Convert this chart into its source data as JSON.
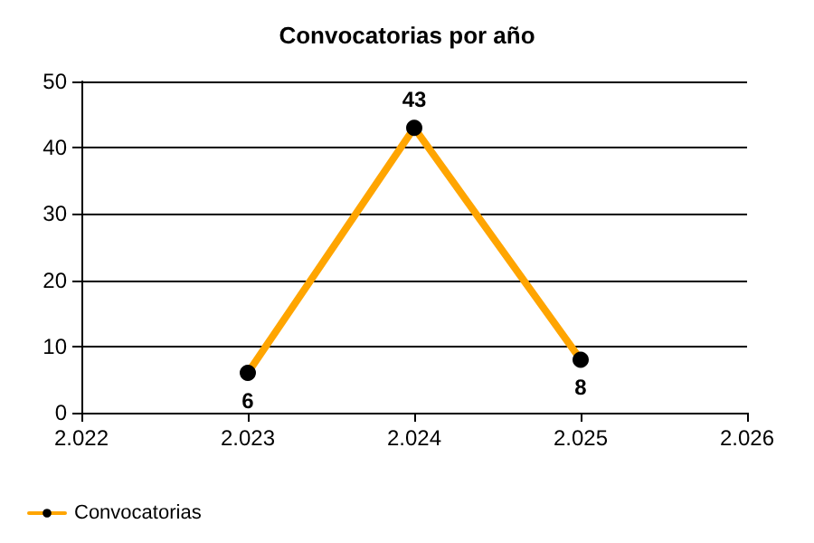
{
  "chart_data": {
    "type": "line",
    "title": "Convocatorias por año",
    "x": [
      2023,
      2024,
      2025
    ],
    "series": [
      {
        "name": "Convocatorias",
        "color": "#ffa500",
        "values": [
          6,
          43,
          8
        ]
      }
    ],
    "xlim": [
      2022,
      2026
    ],
    "xticks": [
      {
        "value": 2022,
        "label": "2.022"
      },
      {
        "value": 2023,
        "label": "2.023"
      },
      {
        "value": 2024,
        "label": "2.024"
      },
      {
        "value": 2025,
        "label": "2.025"
      },
      {
        "value": 2026,
        "label": "2.026"
      }
    ],
    "ylim": [
      0,
      50
    ],
    "yticks": [
      0,
      10,
      20,
      30,
      40,
      50
    ],
    "grid": "y",
    "legend": "bottom left",
    "marker": "circle",
    "line_style": "solid",
    "data_labels": true
  }
}
